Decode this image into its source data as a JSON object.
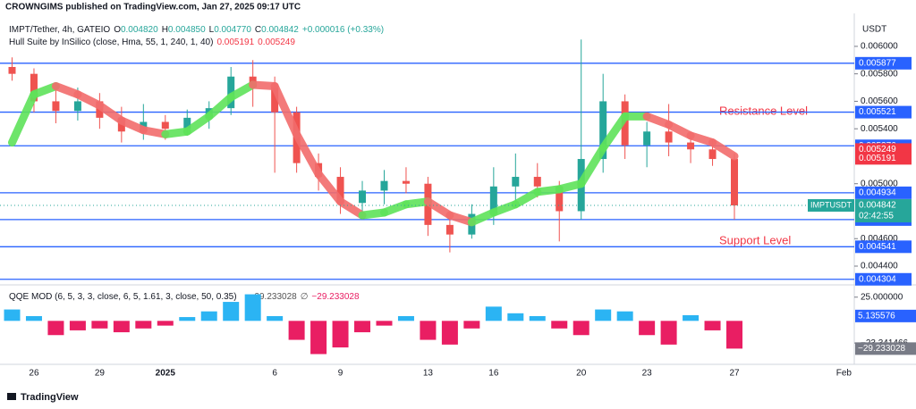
{
  "header": {
    "title": "CROWNGIMS published on TradingView.com, Jan 27, 2025 09:17 UTC"
  },
  "footer": {
    "brand": "TradingView"
  },
  "chart_data": [
    {
      "type": "candlestick",
      "symbol": "IMPT/Tether, 4h, GATEIO",
      "ohlc_legend": [
        {
          "label": "O",
          "value": "0.004820"
        },
        {
          "label": "H",
          "value": "0.004850"
        },
        {
          "label": "L",
          "value": "0.004770"
        },
        {
          "label": "C",
          "value": "0.004842"
        }
      ],
      "change": "+0.000016 (+0.33%)",
      "currency": "USDT",
      "categories": [
        null,
        "26",
        null,
        null,
        "29",
        null,
        null,
        "2025",
        null,
        null,
        null,
        null,
        "6",
        null,
        null,
        "9",
        null,
        null,
        null,
        "13",
        null,
        null,
        "16",
        null,
        null,
        null,
        "20",
        null,
        null,
        "23",
        null,
        null,
        null,
        "27",
        null,
        null,
        null,
        null,
        "Feb"
      ],
      "series": [
        {
          "name": "IMPTUSDT",
          "up_color": "#26a69a",
          "down_color": "#ef5350",
          "open": [
            0.00585,
            0.0058,
            0.0056,
            0.00553,
            0.0056,
            0.00548,
            0.00538,
            0.00545,
            0.0054,
            0.00548,
            0.00555,
            0.00578,
            0.0057,
            0.00552,
            0.00515,
            0.00505,
            0.00486,
            0.00495,
            0.00502,
            0.005,
            0.0047,
            0.00463,
            0.00478,
            0.00498,
            0.00505,
            0.00498,
            0.0048,
            0.00518,
            0.0056,
            0.00528,
            0.00538,
            0.0053,
            0.00525,
            0.00518,
            null,
            null,
            null,
            null,
            null
          ],
          "high": [
            0.00592,
            0.00584,
            0.00568,
            0.0057,
            0.00566,
            0.00556,
            0.00558,
            0.0055,
            0.00554,
            0.0056,
            0.00585,
            0.0059,
            0.00578,
            0.00556,
            0.00522,
            0.00512,
            0.00502,
            0.0051,
            0.00512,
            0.00505,
            0.00478,
            0.00485,
            0.00512,
            0.00522,
            0.00515,
            0.00502,
            0.00605,
            0.0058,
            0.00565,
            0.00545,
            0.00558,
            0.00535,
            0.00532,
            0.00522,
            null,
            null,
            null,
            null,
            null
          ],
          "low": [
            0.00575,
            0.00552,
            0.00544,
            0.00546,
            0.0054,
            0.0053,
            0.00532,
            0.00532,
            0.00535,
            0.0054,
            0.0055,
            0.00556,
            0.00508,
            0.00508,
            0.00495,
            0.00478,
            0.00475,
            0.00485,
            0.00493,
            0.00462,
            0.0045,
            0.0046,
            0.0047,
            0.00487,
            0.0049,
            0.00458,
            0.00474,
            0.00508,
            0.00518,
            0.00512,
            0.0052,
            0.00515,
            0.00513,
            0.00474,
            null,
            null,
            null,
            null,
            null
          ],
          "close": [
            0.0058,
            0.0056,
            0.00553,
            0.0056,
            0.00548,
            0.00538,
            0.00545,
            0.0054,
            0.00548,
            0.00555,
            0.00578,
            0.0057,
            0.00552,
            0.00515,
            0.00505,
            0.00486,
            0.00495,
            0.00502,
            0.005,
            0.0047,
            0.00463,
            0.00478,
            0.00498,
            0.00505,
            0.00498,
            0.0048,
            0.00518,
            0.0056,
            0.00528,
            0.00538,
            0.0053,
            0.00525,
            0.00518,
            0.004842,
            null,
            null,
            null,
            null,
            null
          ]
        }
      ],
      "hull": {
        "name": "Hull Suite by InSilico (close, Hma, 55, 1, 240, 1, 40)",
        "legend_values": [
          "0.005191",
          "0.005249"
        ],
        "up_color": "#5fe35a",
        "down_color": "#f26c6c",
        "values": [
          0.0053,
          0.00565,
          0.00571,
          0.00565,
          0.00557,
          0.00546,
          0.00539,
          0.00536,
          0.00538,
          0.00549,
          0.00563,
          0.00572,
          0.00571,
          0.00536,
          0.00507,
          0.00487,
          0.00477,
          0.00479,
          0.00485,
          0.00487,
          0.00477,
          0.00472,
          0.00479,
          0.00485,
          0.00494,
          0.00496,
          0.005,
          0.00526,
          0.00549,
          0.00549,
          0.00543,
          0.00535,
          0.0053,
          0.0052,
          null,
          null,
          null,
          null,
          null
        ]
      },
      "hull_labels": [
        0.005249,
        0.005191
      ],
      "hull_label_color": "#f23645",
      "levels": [
        0.005877,
        0.005521,
        0.005276,
        0.004934,
        0.004739,
        0.004541,
        0.004304
      ],
      "level_color": "#2962ff",
      "price": {
        "value": 0.004842,
        "symbol": "IMPTUSDT",
        "countdown": "02:42:55",
        "color": "#26a69a"
      },
      "annotations": [
        "Resistance Level",
        "Support Level"
      ],
      "ylim": [
        0.00427,
        0.00624
      ],
      "yticks": [
        {
          "value": 0.006,
          "label": "0.006000"
        },
        {
          "value": 0.0058,
          "label": "0.005800"
        },
        {
          "value": 0.0056,
          "label": "0.005600"
        },
        {
          "value": 0.0054,
          "label": "0.005400"
        },
        {
          "value": 0.005,
          "label": "0.005000"
        },
        {
          "value": 0.0046,
          "label": "0.004600"
        },
        {
          "value": 0.0044,
          "label": "0.004400"
        }
      ]
    },
    {
      "type": "bar",
      "title": "QQE MOD (6, 5, 3, 3, close, 6, 5, 1.61, 3, close, 50, 0.35)",
      "legend_values": [
        "−29.233028",
        "∅",
        "−29.233028"
      ],
      "positive_color": "#2bb4f3",
      "negative_color": "#e91e63",
      "values": [
        12,
        5,
        -15,
        -10,
        -8,
        -12,
        -8,
        -5,
        4,
        10,
        20,
        28,
        5,
        -20,
        -35,
        -28,
        -12,
        -5,
        5,
        -20,
        -25,
        -8,
        15,
        8,
        5,
        -8,
        -15,
        12,
        10,
        -15,
        -25,
        6,
        -10,
        -29.233028,
        null,
        null,
        null,
        null,
        null
      ],
      "indicator_labels": [
        {
          "value": 5.135576,
          "label": "5.135576",
          "color": "#2962ff"
        },
        {
          "value": -29.233028,
          "label": "−29.233028",
          "color": "#787b86"
        }
      ],
      "ylim": [
        -43,
        37
      ],
      "yticks": [
        {
          "value": 25,
          "label": "25.000000"
        },
        {
          "value": -23.341466,
          "label": "−23.341466"
        }
      ]
    }
  ]
}
